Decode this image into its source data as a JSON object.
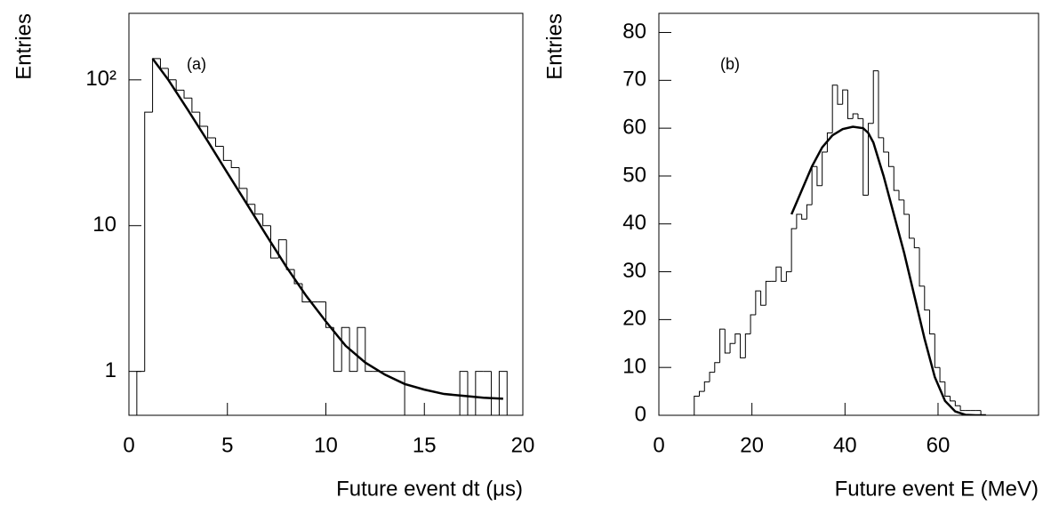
{
  "chart_data": [
    {
      "type": "histogram",
      "color": "#000000",
      "log_y": true,
      "x_label": "Future event dt (μs)",
      "y_label": "Entries",
      "annotation": "(a)",
      "xlim": [
        0,
        20
      ],
      "xticks": [
        0,
        5,
        10,
        15,
        20
      ],
      "ylim": [
        0.5,
        286
      ],
      "yticks": [
        1,
        10,
        {
          "value": 100,
          "label": "10²"
        }
      ],
      "bins": [
        0,
        0.4,
        0.8,
        1.2,
        1.6,
        2.0,
        2.4,
        2.8,
        3.2,
        3.6,
        4.0,
        4.4,
        4.8,
        5.2,
        5.6,
        6.0,
        6.4,
        6.8,
        7.2,
        7.6,
        8.0,
        8.4,
        8.8,
        9.2,
        9.6,
        10.0,
        10.4,
        10.8,
        11.2,
        11.6,
        12.0,
        12.4,
        12.8,
        13.2,
        13.6,
        14.0,
        14.4,
        14.8,
        15.2,
        15.6,
        16.0,
        16.4,
        16.8,
        17.2,
        17.6,
        18.0,
        18.4,
        18.8,
        19.2
      ],
      "values": [
        0,
        1,
        60,
        140,
        120,
        100,
        85,
        75,
        60,
        48,
        40,
        35,
        28,
        25,
        18,
        14,
        12,
        10,
        6,
        8,
        5,
        4,
        3,
        3,
        3,
        2,
        1,
        2,
        1,
        2,
        1,
        1,
        1,
        1,
        1,
        0,
        0,
        0,
        0,
        0,
        0,
        0,
        1,
        0,
        1,
        1,
        0,
        1
      ],
      "fit": {
        "x": [
          1.2,
          2,
          3,
          4,
          5,
          6,
          7,
          8,
          9,
          10,
          11,
          12,
          13,
          14,
          15,
          16,
          17,
          18,
          19
        ],
        "y": [
          140,
          100,
          62,
          38,
          23,
          14,
          8.5,
          5.2,
          3.3,
          2.2,
          1.5,
          1.15,
          0.95,
          0.82,
          0.75,
          0.7,
          0.68,
          0.66,
          0.65
        ]
      }
    },
    {
      "type": "histogram",
      "color": "#000000",
      "log_y": false,
      "x_label": "Future event E (MeV)",
      "y_label": "Entries",
      "annotation": "(b)",
      "xlim": [
        0,
        81.6
      ],
      "xticks": [
        0,
        20,
        40,
        60
      ],
      "ylim": [
        0,
        84
      ],
      "yticks": [
        0,
        10,
        20,
        30,
        40,
        50,
        60,
        70,
        80
      ],
      "bins": [
        6.5,
        7.6,
        8.7,
        9.8,
        10.9,
        12.0,
        13.1,
        14.2,
        15.3,
        16.4,
        17.5,
        18.6,
        19.7,
        20.8,
        21.9,
        23.0,
        24.1,
        25.2,
        26.3,
        27.4,
        28.5,
        29.6,
        30.7,
        31.8,
        32.9,
        34.0,
        35.1,
        36.2,
        37.3,
        38.4,
        39.5,
        40.6,
        41.7,
        42.8,
        43.9,
        45.0,
        46.1,
        47.2,
        48.3,
        49.4,
        50.5,
        51.6,
        52.7,
        53.8,
        54.9,
        56.0,
        57.1,
        58.2,
        59.3,
        60.4,
        61.5,
        62.6,
        63.7,
        64.8,
        65.9,
        67.0,
        68.1,
        69.2,
        70.3
      ],
      "values": [
        0,
        4,
        5,
        7,
        9,
        11,
        18,
        13,
        15,
        17,
        12,
        17,
        21,
        26,
        23,
        28,
        28,
        31,
        28,
        30,
        39,
        42,
        41,
        44,
        52,
        48,
        55,
        59,
        69,
        65,
        68,
        62,
        63,
        62,
        46,
        61,
        72,
        58,
        55,
        52,
        47,
        45,
        42,
        37,
        35,
        27,
        22,
        17,
        10,
        7,
        4,
        3,
        2,
        1,
        1,
        1,
        1,
        0
      ],
      "fit": {
        "x": [
          28.5,
          30.7,
          32.9,
          35.1,
          37.3,
          39.5,
          41.7,
          43.9,
          45.0,
          46.1,
          48.3,
          50.5,
          52.7,
          54.9,
          57.1,
          59.3,
          61.5,
          63.7,
          65.9,
          68.1,
          70.3
        ],
        "y": [
          42,
          47,
          52,
          56,
          58.5,
          59.8,
          60.3,
          60,
          59,
          57,
          50,
          42,
          34,
          25,
          16,
          8,
          3,
          0.8,
          0.1,
          0,
          0
        ]
      }
    }
  ]
}
